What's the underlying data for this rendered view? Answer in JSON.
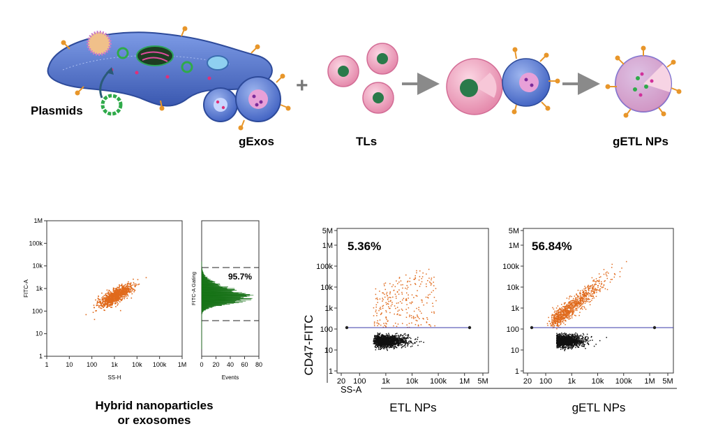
{
  "schematic": {
    "plasmids_label": "Plasmids",
    "gexos_label": "gExos",
    "plus_sign": "+",
    "tls_label": "TLs",
    "getl_label": "gETL NPs"
  },
  "colors": {
    "cell_blue": "#5b7fd6",
    "cell_dark": "#3d5fb8",
    "liposome_pink": "#f2a5bf",
    "dot_green": "#1f9a5a",
    "dot_magenta": "#d0309a",
    "arrow_orange": "#e8962a",
    "arrow_grey": "#8a8a8a",
    "scatter_orange": "#e06a1c",
    "scatter_black": "#111111",
    "hist_green": "#1f9a1f",
    "gate_blue": "#3a3aa8"
  },
  "left_panel": {
    "caption_line1": "Hybrid nanoparticles",
    "caption_line2": "or exosomes",
    "gate_percent": "95.7%",
    "scatter": {
      "ylabel": "FITC-A",
      "xlabel": "SS-H",
      "ticks": [
        "1",
        "10",
        "100",
        "1k",
        "10k",
        "100k",
        "1M"
      ]
    },
    "histogram": {
      "ylabel": "FITC-A Gating",
      "xlabel": "Events",
      "xticks": [
        "0",
        "20",
        "40",
        "60",
        "80"
      ]
    }
  },
  "right_panel": {
    "shared_ylabel": "CD47-FITC",
    "shared_xlabel": "SS-A",
    "yticks": [
      "1",
      "10",
      "100",
      "1k",
      "10k",
      "100k",
      "1M",
      "5M"
    ],
    "xticks": [
      "20",
      "100",
      "1k",
      "10k",
      "100k",
      "1M",
      "5M"
    ],
    "plots": [
      {
        "percent": "5.36%",
        "caption": "ETL NPs"
      },
      {
        "percent": "56.84%",
        "caption": "gETL NPs"
      }
    ]
  },
  "chart_data": [
    {
      "type": "scatter",
      "xlabel": "SS-H",
      "ylabel": "FITC-A",
      "xscale": "log",
      "yscale": "log",
      "xlim": [
        1,
        1000000
      ],
      "ylim": [
        1,
        1000000
      ],
      "cluster": {
        "x_center": 800,
        "y_center": 500
      }
    },
    {
      "type": "bar",
      "xlabel": "Events",
      "ylabel": "FITC-A Gating",
      "xlim": [
        0,
        80
      ],
      "gate_percent": 95.7,
      "gate_range": [
        40,
        8000
      ],
      "peak_events": 65,
      "peak_value": 350
    },
    {
      "type": "scatter",
      "caption": "ETL NPs",
      "xlabel": "SS-A",
      "ylabel": "CD47-FITC",
      "xscale": "log",
      "yscale": "log",
      "xlim": [
        20,
        5000000
      ],
      "ylim": [
        1,
        5000000
      ],
      "gate_threshold": 80,
      "positive_percent": 5.36
    },
    {
      "type": "scatter",
      "caption": "gETL NPs",
      "xlabel": "SS-A",
      "ylabel": "CD47-FITC",
      "xscale": "log",
      "yscale": "log",
      "xlim": [
        20,
        5000000
      ],
      "ylim": [
        1,
        5000000
      ],
      "gate_threshold": 80,
      "positive_percent": 56.84
    }
  ]
}
